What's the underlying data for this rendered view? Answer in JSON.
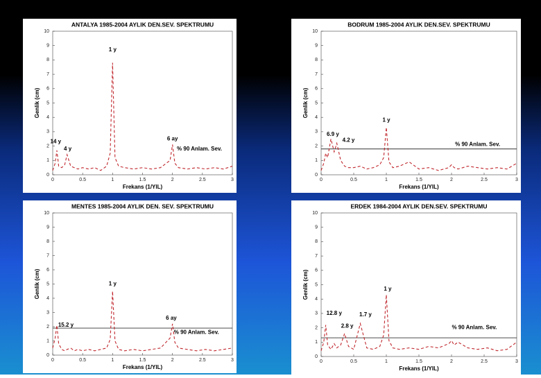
{
  "chart_data": [
    {
      "type": "line",
      "title": "ANTALYA 1985-2004 AYLIK DEN.SEV. SPEKTRUMU",
      "xlabel": "Frekans (1/YIL)",
      "ylabel": "Genlik (cm)",
      "color": "#c0272d",
      "xlim": [
        0,
        3
      ],
      "ylim": [
        0,
        10
      ],
      "xticks": [
        0,
        0.5,
        1,
        1.5,
        2,
        2.5,
        3
      ],
      "yticks": [
        0,
        1,
        2,
        3,
        4,
        5,
        6,
        7,
        8,
        9,
        10
      ],
      "x": [
        0,
        0.04,
        0.07,
        0.1,
        0.15,
        0.2,
        0.24,
        0.3,
        0.36,
        0.42,
        0.5,
        0.6,
        0.7,
        0.8,
        0.9,
        0.96,
        1.0,
        1.04,
        1.1,
        1.2,
        1.35,
        1.5,
        1.65,
        1.8,
        1.96,
        2.0,
        2.04,
        2.1,
        2.25,
        2.4,
        2.55,
        2.7,
        2.85,
        3.0
      ],
      "values": [
        0.3,
        0.8,
        1.7,
        0.6,
        0.5,
        0.7,
        1.4,
        0.6,
        0.5,
        0.4,
        0.5,
        0.4,
        0.5,
        0.3,
        0.6,
        1.5,
        7.8,
        1.2,
        0.6,
        0.5,
        0.4,
        0.5,
        0.4,
        0.5,
        1.0,
        2.1,
        0.8,
        0.5,
        0.4,
        0.5,
        0.4,
        0.5,
        0.4,
        0.6
      ],
      "annotations": [
        {
          "text": "1 y",
          "x": 1.0,
          "y": 8.7
        },
        {
          "text": "14 y",
          "x": 0.05,
          "y": 2.3
        },
        {
          "text": "4 y",
          "x": 0.25,
          "y": 1.8
        },
        {
          "text": "6 ay",
          "x": 2.0,
          "y": 2.5
        },
        {
          "text": "% 90 Anlam. Sev.",
          "x": 2.45,
          "y": 1.8
        }
      ]
    },
    {
      "type": "line",
      "title": "BODRUM 1985-2004 AYLIK DEN.SEV. SPEKTRUMU",
      "xlabel": "Frekans (1/YIL)",
      "ylabel": "Genlik (cm)",
      "color": "#c0272d",
      "xlim": [
        0,
        3
      ],
      "ylim": [
        0,
        10
      ],
      "xticks": [
        0,
        0.5,
        1,
        1.5,
        2,
        2.5,
        3
      ],
      "yticks": [
        0,
        1,
        2,
        3,
        4,
        5,
        6,
        7,
        8,
        9,
        10
      ],
      "threshold": 1.8,
      "x": [
        0,
        0.04,
        0.07,
        0.1,
        0.15,
        0.2,
        0.24,
        0.3,
        0.36,
        0.42,
        0.5,
        0.6,
        0.7,
        0.8,
        0.9,
        0.96,
        1.0,
        1.04,
        1.1,
        1.2,
        1.35,
        1.5,
        1.65,
        1.8,
        1.96,
        2.0,
        2.04,
        2.1,
        2.25,
        2.4,
        2.55,
        2.7,
        2.85,
        3.0
      ],
      "values": [
        0.3,
        0.8,
        1.5,
        1.2,
        2.5,
        1.6,
        2.2,
        1.0,
        0.6,
        0.5,
        0.5,
        0.6,
        0.4,
        0.5,
        0.7,
        1.2,
        3.3,
        0.9,
        0.5,
        0.6,
        0.9,
        0.4,
        0.5,
        0.3,
        0.5,
        0.7,
        0.5,
        0.4,
        0.6,
        0.5,
        0.4,
        0.5,
        0.4,
        0.8
      ],
      "annotations": [
        {
          "text": "1 y",
          "x": 1.0,
          "y": 3.8
        },
        {
          "text": "6.9 y",
          "x": 0.18,
          "y": 2.8
        },
        {
          "text": "4.2 y",
          "x": 0.42,
          "y": 2.4
        },
        {
          "text": "% 90 Anlam. Sev.",
          "x": 2.4,
          "y": 2.1
        }
      ]
    },
    {
      "type": "line",
      "title": "MENTES 1985-2004 AYLIK DEN. SEV. SPEKTRUMU",
      "xlabel": "Frekans (1/YIL)",
      "ylabel": "Genlik (cm)",
      "color": "#c0272d",
      "xlim": [
        0,
        3
      ],
      "ylim": [
        0,
        10
      ],
      "xticks": [
        0,
        0.5,
        1,
        1.5,
        2,
        2.5,
        3
      ],
      "yticks": [
        0,
        1,
        2,
        3,
        4,
        5,
        6,
        7,
        8,
        9,
        10
      ],
      "threshold": 1.9,
      "x": [
        0,
        0.04,
        0.07,
        0.1,
        0.15,
        0.2,
        0.24,
        0.3,
        0.36,
        0.42,
        0.5,
        0.6,
        0.7,
        0.8,
        0.9,
        0.96,
        1.0,
        1.04,
        1.1,
        1.2,
        1.35,
        1.5,
        1.65,
        1.8,
        1.96,
        2.0,
        2.04,
        2.1,
        2.25,
        2.4,
        2.55,
        2.7,
        2.85,
        3.0
      ],
      "values": [
        0.5,
        1.2,
        2.1,
        0.8,
        0.4,
        0.3,
        0.4,
        0.5,
        0.3,
        0.4,
        0.3,
        0.4,
        0.3,
        0.4,
        0.5,
        1.1,
        4.5,
        1.0,
        0.4,
        0.3,
        0.4,
        0.3,
        0.4,
        0.5,
        1.2,
        2.2,
        0.9,
        0.5,
        0.4,
        0.3,
        0.4,
        0.3,
        0.4,
        0.5
      ],
      "annotations": [
        {
          "text": "1 y",
          "x": 1.0,
          "y": 5.0
        },
        {
          "text": "15.2 y",
          "x": 0.22,
          "y": 2.1
        },
        {
          "text": "6 ay",
          "x": 1.98,
          "y": 2.6
        },
        {
          "text": "% 90 Anlam. Sev.",
          "x": 2.4,
          "y": 1.6
        }
      ]
    },
    {
      "type": "line",
      "title": "ERDEK 1984-2004 AYLIK DEN.SEV. SPEKTRUMU",
      "xlabel": "Frekans (1/YIL)",
      "ylabel": "Genlik (cm)",
      "color": "#c0272d",
      "xlim": [
        0,
        3
      ],
      "ylim": [
        0,
        10
      ],
      "xticks": [
        0,
        0.5,
        1,
        1.5,
        2,
        2.5,
        3
      ],
      "yticks": [
        0,
        1,
        2,
        3,
        4,
        5,
        6,
        7,
        8,
        9,
        10
      ],
      "threshold": 1.3,
      "x": [
        0,
        0.04,
        0.07,
        0.1,
        0.15,
        0.2,
        0.24,
        0.3,
        0.36,
        0.42,
        0.5,
        0.6,
        0.7,
        0.8,
        0.9,
        0.96,
        1.0,
        1.04,
        1.1,
        1.2,
        1.35,
        1.5,
        1.65,
        1.8,
        1.96,
        2.0,
        2.04,
        2.1,
        2.25,
        2.4,
        2.55,
        2.7,
        2.85,
        3.0
      ],
      "values": [
        0.4,
        1.0,
        2.2,
        0.8,
        0.5,
        0.9,
        0.6,
        0.8,
        1.6,
        0.7,
        0.5,
        2.3,
        0.6,
        0.5,
        0.7,
        1.5,
        4.3,
        1.1,
        0.6,
        0.5,
        0.6,
        0.5,
        0.7,
        0.6,
        0.9,
        1.1,
        0.8,
        1.0,
        0.6,
        0.5,
        0.6,
        0.4,
        0.5,
        1.0
      ],
      "annotations": [
        {
          "text": "1 y",
          "x": 1.02,
          "y": 4.7
        },
        {
          "text": "12.8 y",
          "x": 0.2,
          "y": 3.0
        },
        {
          "text": "2.8 y",
          "x": 0.4,
          "y": 2.1
        },
        {
          "text": "1.7 y",
          "x": 0.68,
          "y": 2.9
        },
        {
          "text": "% 90 Anlam. Sev.",
          "x": 2.35,
          "y": 2.0
        }
      ]
    }
  ]
}
